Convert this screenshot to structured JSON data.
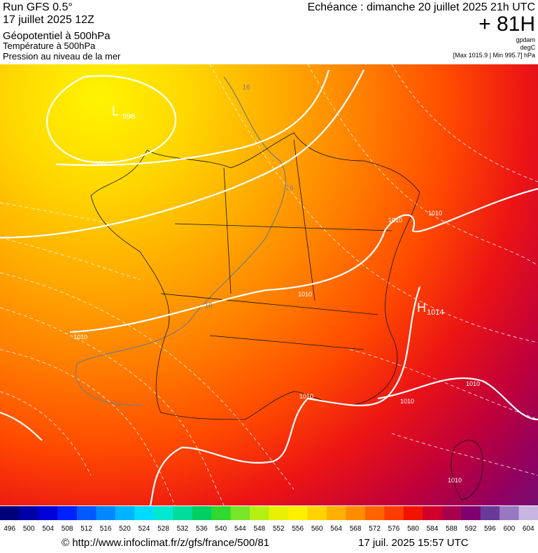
{
  "header": {
    "run": "Run GFS 0.5°",
    "run_date": "17 juillet 2025 12Z",
    "field_1": "Géopotentiel à 500hPa",
    "field_2": "Température à 500hPa",
    "field_3": "Pression au niveau de la mer",
    "valid": "Echéance : dimanche 20 juillet 2025 21h UTC",
    "lead": "+ 81H",
    "unit_1": "gpdam",
    "unit_2": "degC",
    "unit_3": "[Max 1015.9 | Min 995.7] hPa"
  },
  "map": {
    "low": {
      "symbol": "L",
      "value": "996"
    },
    "high": {
      "symbol": "H",
      "value": "1014"
    },
    "isobar_labels": [
      "1000",
      "1010",
      "1010",
      "1010",
      "1010",
      "1010",
      "1010",
      "1010",
      "1010"
    ],
    "isotherm_labels": [
      "16",
      "16",
      "16"
    ]
  },
  "colorbar": {
    "labels": [
      "496",
      "500",
      "504",
      "508",
      "512",
      "516",
      "520",
      "524",
      "528",
      "532",
      "536",
      "540",
      "544",
      "548",
      "552",
      "556",
      "560",
      "564",
      "568",
      "572",
      "576",
      "580",
      "584",
      "588",
      "592",
      "596",
      "600",
      "604"
    ],
    "colors": [
      "#00007a",
      "#0000a8",
      "#0000d8",
      "#0020ff",
      "#0058ff",
      "#0088ff",
      "#00b4ff",
      "#00dcff",
      "#00e8d0",
      "#00dc9c",
      "#00d064",
      "#30d830",
      "#78e628",
      "#b4f014",
      "#e6f000",
      "#fff000",
      "#ffd400",
      "#ffb000",
      "#ff8c00",
      "#ff6400",
      "#ff3c00",
      "#f01400",
      "#d0002c",
      "#a8004c",
      "#800070",
      "#6a3a9a",
      "#9a78c0",
      "#c8b4e0"
    ]
  },
  "footer": {
    "source": "© http://www.infoclimat.fr/z/gfs/france/500/81",
    "timestamp": "17 juil. 2025 15:57 UTC"
  }
}
